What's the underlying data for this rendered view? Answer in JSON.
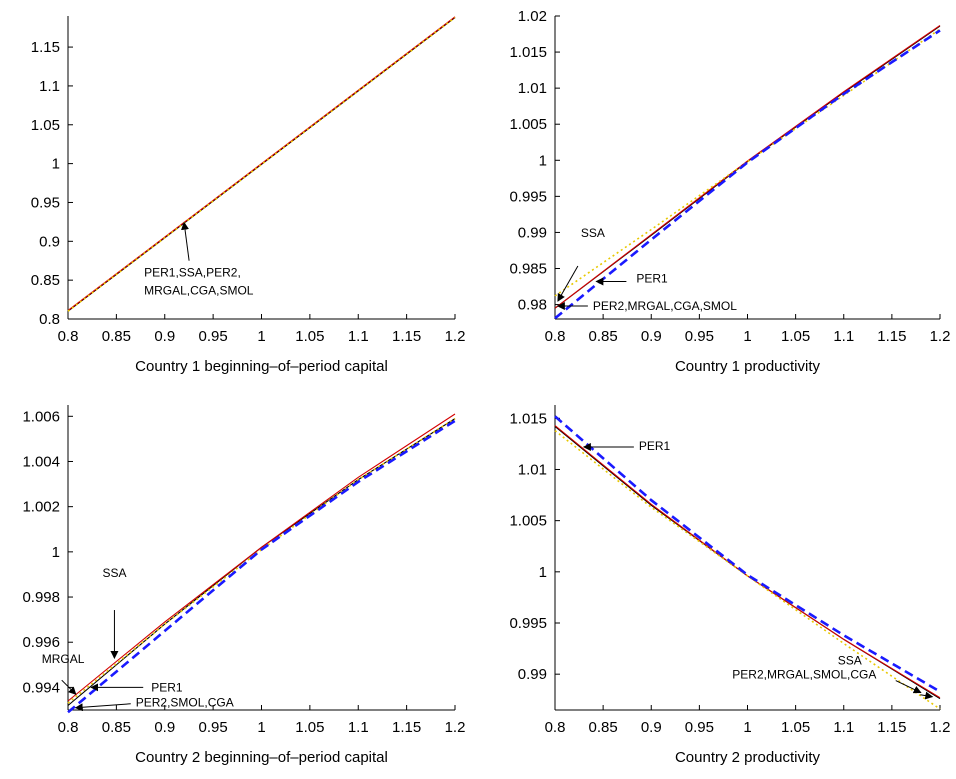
{
  "chart_data": [
    {
      "type": "line",
      "xlabel": "Country 1 beginning–of–period capital",
      "xlim": [
        0.8,
        1.2
      ],
      "ylim": [
        0.8,
        1.19
      ],
      "xticks": [
        "0.8",
        "0.85",
        "0.9",
        "0.95",
        "1",
        "1.05",
        "1.1",
        "1.15",
        "1.2"
      ],
      "yticks": [
        "0.8",
        "0.85",
        "0.9",
        "0.95",
        "1",
        "1.05",
        "1.1",
        "1.15"
      ],
      "series": [
        {
          "color": "#000000",
          "style": "solid",
          "x": [
            0.8,
            1.2
          ],
          "y": [
            0.81,
            1.188
          ]
        },
        {
          "color": "#d40000",
          "style": "solid",
          "x": [
            0.8,
            1.2
          ],
          "y": [
            0.811,
            1.189
          ]
        },
        {
          "color": "#e8c800",
          "style": "dotted",
          "x": [
            0.8,
            1.2
          ],
          "y": [
            0.81,
            1.188
          ]
        }
      ],
      "annotations": [
        {
          "lines": [
            "PER1,SSA,PER2,",
            "MRGAL,CGA,SMOL"
          ],
          "arrow_to": [
            0.92,
            0.924
          ]
        }
      ]
    },
    {
      "type": "line",
      "xlabel": "Country 1 productivity",
      "xlim": [
        0.8,
        1.2
      ],
      "ylim": [
        0.978,
        1.02
      ],
      "xticks": [
        "0.8",
        "0.85",
        "0.9",
        "0.95",
        "1",
        "1.05",
        "1.1",
        "1.15",
        "1.2"
      ],
      "yticks": [
        "0.98",
        "0.985",
        "0.99",
        "0.995",
        "1",
        "1.005",
        "1.01",
        "1.015",
        "1.02"
      ],
      "series": [
        {
          "color": "#000000",
          "style": "solid",
          "x": [
            0.8,
            0.9,
            1.0,
            1.1,
            1.2
          ],
          "y": [
            0.9795,
            0.9896,
            0.9998,
            1.0094,
            1.0186
          ]
        },
        {
          "color": "#d40000",
          "style": "solid",
          "x": [
            0.8,
            0.9,
            1.0,
            1.1,
            1.2
          ],
          "y": [
            0.9795,
            0.9897,
            0.9999,
            1.0095,
            1.0187
          ]
        },
        {
          "color": "#e8c800",
          "style": "dotted",
          "x": [
            0.8,
            0.9,
            1.0,
            1.1,
            1.2
          ],
          "y": [
            0.9812,
            0.9904,
            0.9998,
            1.009,
            1.0182
          ]
        },
        {
          "color": "#1a1aff",
          "style": "dashed",
          "x": [
            0.8,
            0.9,
            1.0,
            1.1,
            1.2
          ],
          "y": [
            0.9781,
            0.989,
            0.9997,
            1.0092,
            1.018
          ]
        }
      ],
      "annotations": [
        {
          "lines": [
            "SSA"
          ],
          "arrow_to": [
            0.803,
            0.9805
          ]
        },
        {
          "lines": [
            "PER1"
          ],
          "arrow_to": [
            0.843,
            0.9832
          ]
        },
        {
          "lines": [
            "PER2,MRGAL,CGA,SMOL"
          ],
          "arrow_to": [
            0.803,
            0.9798
          ]
        }
      ]
    },
    {
      "type": "line",
      "xlabel": "Country 2 beginning–of–period capital",
      "xlim": [
        0.8,
        1.2
      ],
      "ylim": [
        0.993,
        1.0065
      ],
      "xticks": [
        "0.8",
        "0.85",
        "0.9",
        "0.95",
        "1",
        "1.05",
        "1.1",
        "1.15",
        "1.2"
      ],
      "yticks": [
        "0.994",
        "0.996",
        "0.998",
        "1",
        "1.002",
        "1.004",
        "1.006"
      ],
      "series": [
        {
          "color": "#000000",
          "style": "solid",
          "x": [
            0.8,
            0.9,
            1.0,
            1.1,
            1.2
          ],
          "y": [
            0.9932,
            0.9968,
            1.0002,
            1.0032,
            1.0059
          ]
        },
        {
          "color": "#d40000",
          "style": "solid",
          "x": [
            0.8,
            0.9,
            1.0,
            1.1,
            1.2
          ],
          "y": [
            0.9934,
            0.9969,
            1.0002,
            1.0033,
            1.0061
          ]
        },
        {
          "color": "#e8c800",
          "style": "dotted",
          "x": [
            0.8,
            0.9,
            1.0,
            1.1,
            1.2
          ],
          "y": [
            0.9933,
            0.9968,
            1.0001,
            1.0032,
            1.0059
          ]
        },
        {
          "color": "#1a1aff",
          "style": "dashed",
          "x": [
            0.8,
            0.9,
            1.0,
            1.1,
            1.2
          ],
          "y": [
            0.9929,
            0.9965,
            1.0001,
            1.0031,
            1.0058
          ]
        }
      ],
      "annotations": [
        {
          "lines": [
            "SSA"
          ],
          "arrow_to": [
            0.848,
            0.9953
          ]
        },
        {
          "lines": [
            "MRGAL"
          ],
          "arrow_to": [
            0.808,
            0.9937
          ]
        },
        {
          "lines": [
            "PER1"
          ],
          "arrow_to": [
            0.824,
            0.994
          ]
        },
        {
          "lines": [
            "PER2,SMOL,CGA"
          ],
          "arrow_to": [
            0.808,
            0.9931
          ]
        }
      ]
    },
    {
      "type": "line",
      "xlabel": "Country 2 productivity",
      "xlim": [
        0.8,
        1.2
      ],
      "ylim": [
        0.9865,
        1.0163
      ],
      "xticks": [
        "0.8",
        "0.85",
        "0.9",
        "0.95",
        "1",
        "1.05",
        "1.1",
        "1.15",
        "1.2"
      ],
      "yticks": [
        "0.99",
        "0.995",
        "1",
        "1.005",
        "1.01",
        "1.015"
      ],
      "series": [
        {
          "color": "#000000",
          "style": "solid",
          "x": [
            0.8,
            0.9,
            1.0,
            1.1,
            1.2
          ],
          "y": [
            1.0142,
            1.0065,
            0.9996,
            0.9934,
            0.9876
          ]
        },
        {
          "color": "#d40000",
          "style": "solid",
          "x": [
            0.8,
            0.9,
            1.0,
            1.1,
            1.2
          ],
          "y": [
            1.0143,
            1.0066,
            0.9996,
            0.9934,
            0.9877
          ]
        },
        {
          "color": "#e8c800",
          "style": "dotted",
          "x": [
            0.8,
            0.9,
            1.0,
            1.1,
            1.2
          ],
          "y": [
            1.0138,
            1.0063,
            0.9996,
            0.993,
            0.9866
          ]
        },
        {
          "color": "#1a1aff",
          "style": "dashed",
          "x": [
            0.8,
            0.9,
            1.0,
            1.1,
            1.2
          ],
          "y": [
            1.0152,
            1.007,
            0.9997,
            0.9938,
            0.9883
          ]
        }
      ],
      "annotations": [
        {
          "lines": [
            "PER1"
          ],
          "arrow_to": [
            0.83,
            1.0122
          ]
        },
        {
          "lines": [
            "SSA"
          ],
          "arrow_to": [
            1.18,
            0.9882
          ]
        },
        {
          "lines": [
            "PER2,MRGAL,SMOL,CGA"
          ],
          "arrow_to": [
            1.192,
            0.9878
          ]
        }
      ]
    }
  ]
}
